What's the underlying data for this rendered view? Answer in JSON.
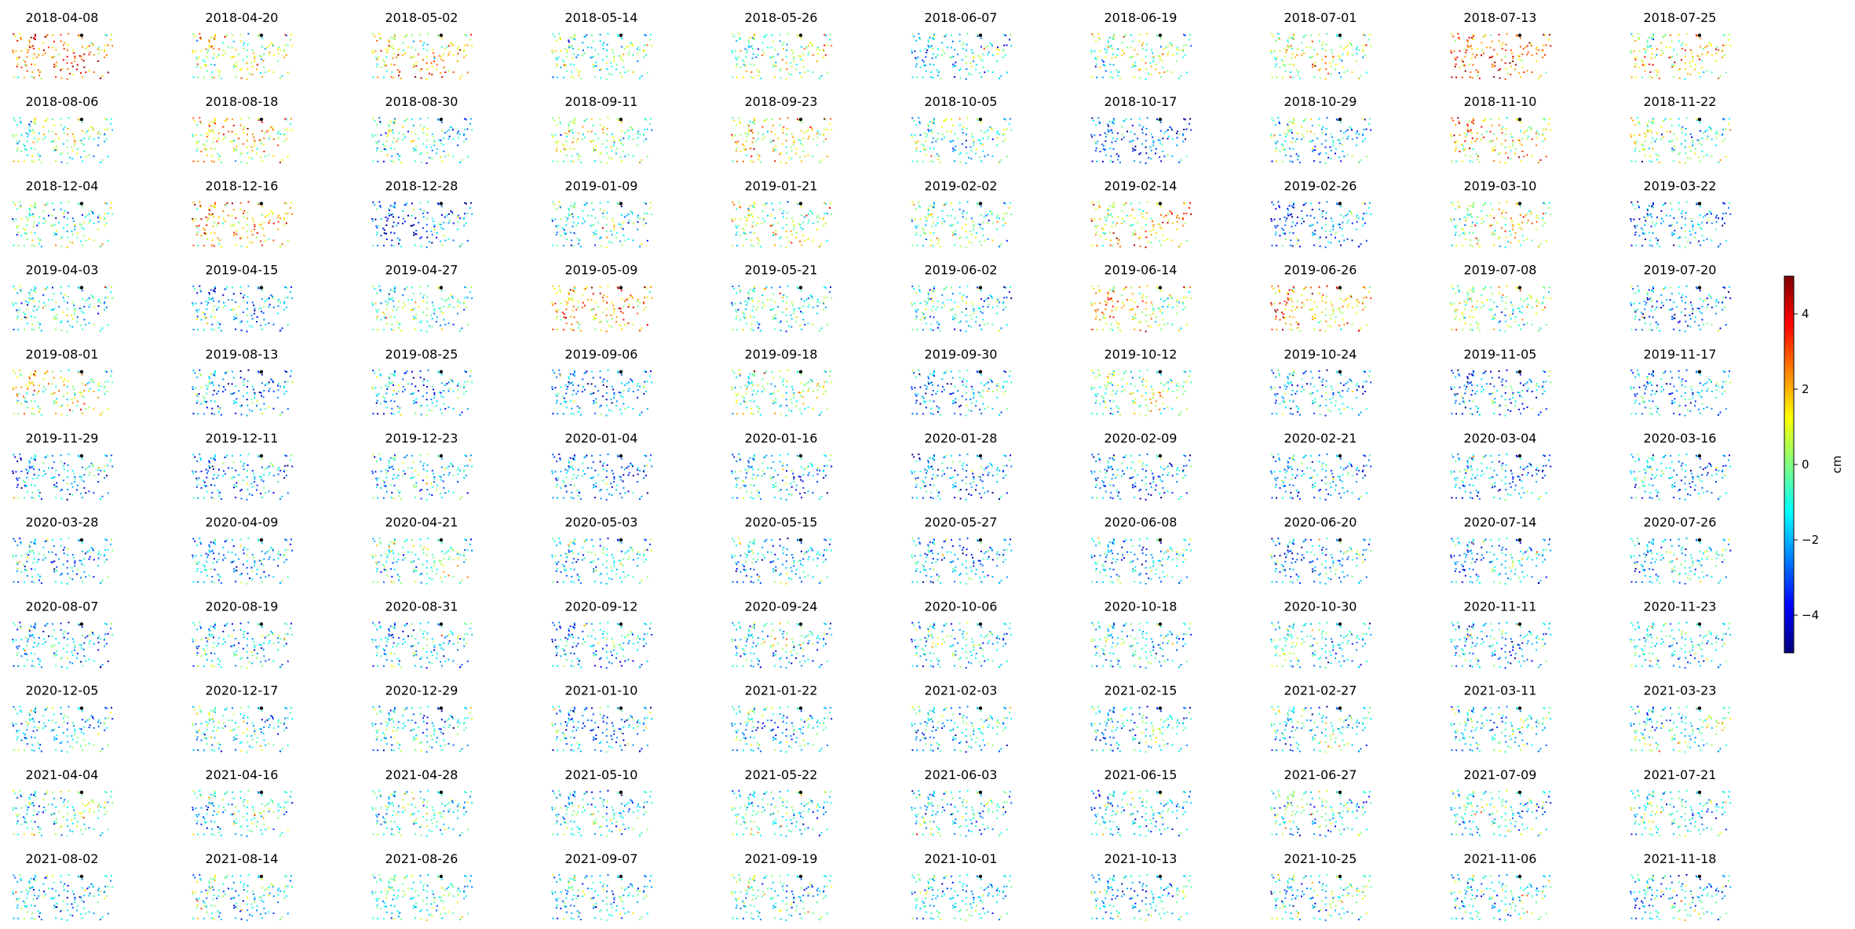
{
  "chart_data": {
    "type": "scatter",
    "layout": "small-multiples",
    "colormap": "jet",
    "grid": false,
    "colorbar": {
      "label": "cm",
      "range": [
        -5,
        5
      ],
      "ticks": [
        4,
        2,
        0,
        -2,
        -4
      ],
      "tick_labels": [
        "4",
        "2",
        "0",
        "−2",
        "−4"
      ],
      "placement": "right"
    },
    "reference_point_color": "#000000",
    "panels": [
      {
        "date": "2018-04-08",
        "mean_cm": 2.5
      },
      {
        "date": "2018-04-20",
        "mean_cm": 0.5
      },
      {
        "date": "2018-05-02",
        "mean_cm": 1.5
      },
      {
        "date": "2018-05-14",
        "mean_cm": -0.2
      },
      {
        "date": "2018-05-26",
        "mean_cm": 0.2
      },
      {
        "date": "2018-06-07",
        "mean_cm": -1.5
      },
      {
        "date": "2018-06-19",
        "mean_cm": 0.0
      },
      {
        "date": "2018-07-01",
        "mean_cm": 0.3
      },
      {
        "date": "2018-07-13",
        "mean_cm": 2.8
      },
      {
        "date": "2018-07-25",
        "mean_cm": 1.2
      },
      {
        "date": "2018-08-06",
        "mean_cm": 0.0
      },
      {
        "date": "2018-08-18",
        "mean_cm": 1.0
      },
      {
        "date": "2018-08-30",
        "mean_cm": -1.0
      },
      {
        "date": "2018-09-11",
        "mean_cm": 0.0
      },
      {
        "date": "2018-09-23",
        "mean_cm": 1.2
      },
      {
        "date": "2018-10-05",
        "mean_cm": -0.8
      },
      {
        "date": "2018-10-17",
        "mean_cm": -2.8
      },
      {
        "date": "2018-10-29",
        "mean_cm": -1.2
      },
      {
        "date": "2018-11-10",
        "mean_cm": 1.5
      },
      {
        "date": "2018-11-22",
        "mean_cm": 0.0
      },
      {
        "date": "2018-12-04",
        "mean_cm": -0.5
      },
      {
        "date": "2018-12-16",
        "mean_cm": 2.0
      },
      {
        "date": "2018-12-28",
        "mean_cm": -2.5
      },
      {
        "date": "2019-01-09",
        "mean_cm": -1.2
      },
      {
        "date": "2019-01-21",
        "mean_cm": 0.2
      },
      {
        "date": "2019-02-02",
        "mean_cm": -0.3
      },
      {
        "date": "2019-02-14",
        "mean_cm": 1.5
      },
      {
        "date": "2019-02-26",
        "mean_cm": -2.5
      },
      {
        "date": "2019-03-10",
        "mean_cm": 0.5
      },
      {
        "date": "2019-03-22",
        "mean_cm": -2.5
      },
      {
        "date": "2019-04-03",
        "mean_cm": -1.0
      },
      {
        "date": "2019-04-15",
        "mean_cm": -2.0
      },
      {
        "date": "2019-04-27",
        "mean_cm": -0.5
      },
      {
        "date": "2019-05-09",
        "mean_cm": 2.0
      },
      {
        "date": "2019-05-21",
        "mean_cm": -1.0
      },
      {
        "date": "2019-06-02",
        "mean_cm": -1.5
      },
      {
        "date": "2019-06-14",
        "mean_cm": 1.2
      },
      {
        "date": "2019-06-26",
        "mean_cm": 2.2
      },
      {
        "date": "2019-07-08",
        "mean_cm": 0.2
      },
      {
        "date": "2019-07-20",
        "mean_cm": -2.0
      },
      {
        "date": "2019-08-01",
        "mean_cm": 0.8
      },
      {
        "date": "2019-08-13",
        "mean_cm": -2.0
      },
      {
        "date": "2019-08-25",
        "mean_cm": -1.8
      },
      {
        "date": "2019-09-06",
        "mean_cm": -2.0
      },
      {
        "date": "2019-09-18",
        "mean_cm": 0.0
      },
      {
        "date": "2019-09-30",
        "mean_cm": -2.0
      },
      {
        "date": "2019-10-12",
        "mean_cm": 0.0
      },
      {
        "date": "2019-10-24",
        "mean_cm": -1.8
      },
      {
        "date": "2019-11-05",
        "mean_cm": -2.5
      },
      {
        "date": "2019-11-17",
        "mean_cm": -2.2
      },
      {
        "date": "2019-11-29",
        "mean_cm": -2.0
      },
      {
        "date": "2019-12-11",
        "mean_cm": -2.2
      },
      {
        "date": "2019-12-23",
        "mean_cm": -1.5
      },
      {
        "date": "2020-01-04",
        "mean_cm": -2.5
      },
      {
        "date": "2020-01-16",
        "mean_cm": -1.8
      },
      {
        "date": "2020-01-28",
        "mean_cm": -2.2
      },
      {
        "date": "2020-02-09",
        "mean_cm": -2.2
      },
      {
        "date": "2020-02-21",
        "mean_cm": -2.0
      },
      {
        "date": "2020-03-04",
        "mean_cm": -2.2
      },
      {
        "date": "2020-03-16",
        "mean_cm": -2.0
      },
      {
        "date": "2020-03-28",
        "mean_cm": -1.8
      },
      {
        "date": "2020-04-09",
        "mean_cm": -2.0
      },
      {
        "date": "2020-04-21",
        "mean_cm": -0.8
      },
      {
        "date": "2020-05-03",
        "mean_cm": -1.5
      },
      {
        "date": "2020-05-15",
        "mean_cm": -1.8
      },
      {
        "date": "2020-05-27",
        "mean_cm": -2.0
      },
      {
        "date": "2020-06-08",
        "mean_cm": -1.5
      },
      {
        "date": "2020-06-20",
        "mean_cm": -2.0
      },
      {
        "date": "2020-07-14",
        "mean_cm": -1.8
      },
      {
        "date": "2020-07-26",
        "mean_cm": -1.5
      },
      {
        "date": "2020-08-07",
        "mean_cm": -1.8
      },
      {
        "date": "2020-08-19",
        "mean_cm": -1.5
      },
      {
        "date": "2020-08-31",
        "mean_cm": -1.5
      },
      {
        "date": "2020-09-12",
        "mean_cm": -1.8
      },
      {
        "date": "2020-09-24",
        "mean_cm": -1.5
      },
      {
        "date": "2020-10-06",
        "mean_cm": -1.5
      },
      {
        "date": "2020-10-18",
        "mean_cm": -1.5
      },
      {
        "date": "2020-10-30",
        "mean_cm": -1.2
      },
      {
        "date": "2020-11-11",
        "mean_cm": -1.8
      },
      {
        "date": "2020-11-23",
        "mean_cm": -1.2
      },
      {
        "date": "2020-12-05",
        "mean_cm": -1.5
      },
      {
        "date": "2020-12-17",
        "mean_cm": -1.2
      },
      {
        "date": "2020-12-29",
        "mean_cm": -1.5
      },
      {
        "date": "2021-01-10",
        "mean_cm": -1.8
      },
      {
        "date": "2021-01-22",
        "mean_cm": -1.5
      },
      {
        "date": "2021-02-03",
        "mean_cm": -1.5
      },
      {
        "date": "2021-02-15",
        "mean_cm": -1.5
      },
      {
        "date": "2021-02-27",
        "mean_cm": -1.2
      },
      {
        "date": "2021-03-11",
        "mean_cm": -1.5
      },
      {
        "date": "2021-03-23",
        "mean_cm": -1.0
      },
      {
        "date": "2021-04-04",
        "mean_cm": -0.8
      },
      {
        "date": "2021-04-16",
        "mean_cm": -1.2
      },
      {
        "date": "2021-04-28",
        "mean_cm": -1.0
      },
      {
        "date": "2021-05-10",
        "mean_cm": -1.5
      },
      {
        "date": "2021-05-22",
        "mean_cm": -1.0
      },
      {
        "date": "2021-06-03",
        "mean_cm": -1.2
      },
      {
        "date": "2021-06-15",
        "mean_cm": -1.5
      },
      {
        "date": "2021-06-27",
        "mean_cm": -1.0
      },
      {
        "date": "2021-07-09",
        "mean_cm": -1.2
      },
      {
        "date": "2021-07-21",
        "mean_cm": -1.2
      },
      {
        "date": "2021-08-02",
        "mean_cm": -1.5
      },
      {
        "date": "2021-08-14",
        "mean_cm": -1.0
      },
      {
        "date": "2021-08-26",
        "mean_cm": -0.8
      },
      {
        "date": "2021-09-07",
        "mean_cm": -1.5
      },
      {
        "date": "2021-09-19",
        "mean_cm": -1.2
      },
      {
        "date": "2021-10-01",
        "mean_cm": -1.2
      },
      {
        "date": "2021-10-13",
        "mean_cm": -1.5
      },
      {
        "date": "2021-10-25",
        "mean_cm": -1.0
      },
      {
        "date": "2021-11-06",
        "mean_cm": -1.2
      },
      {
        "date": "2021-11-18",
        "mean_cm": -1.5
      }
    ]
  }
}
